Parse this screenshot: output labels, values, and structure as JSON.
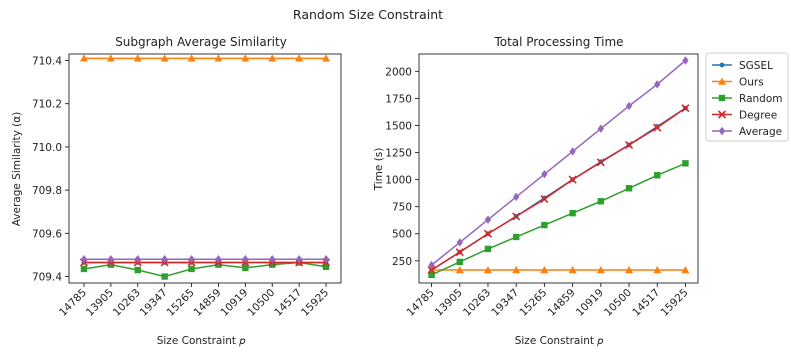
{
  "figure": {
    "suptitle": "Random Size Constraint"
  },
  "legend": {
    "entries": [
      {
        "name": "SGSEL",
        "color": "#1f77b4",
        "marker": "dot"
      },
      {
        "name": "Ours",
        "color": "#ff7f0e",
        "marker": "triangle"
      },
      {
        "name": "Random",
        "color": "#2ca02c",
        "marker": "square"
      },
      {
        "name": "Degree",
        "color": "#d62728",
        "marker": "x"
      },
      {
        "name": "Average",
        "color": "#9467bd",
        "marker": "diamond"
      }
    ],
    "placement": "right of second chart, top"
  },
  "chart_data": [
    {
      "type": "line",
      "title": "Subgraph Average Similarity",
      "xlabel": "Size Constraint 𝑝",
      "ylabel": "Average Similarity (α)",
      "categories": [
        "14785",
        "13905",
        "10263",
        "19347",
        "15265",
        "14859",
        "10919",
        "10500",
        "14517",
        "15925"
      ],
      "ylim": [
        709.37,
        710.43
      ],
      "yticks": [
        "709.4",
        "709.6",
        "709.8",
        "710.0",
        "710.2",
        "710.4"
      ],
      "ytick_values": [
        709.4,
        709.6,
        709.8,
        710.0,
        710.2,
        710.4
      ],
      "grid": false,
      "series": [
        {
          "name": "SGSEL",
          "color": "#1f77b4",
          "marker": "dot",
          "values": [
            709.465,
            709.465,
            709.465,
            709.465,
            709.465,
            709.465,
            709.465,
            709.465,
            709.465,
            709.465
          ]
        },
        {
          "name": "Ours",
          "color": "#ff7f0e",
          "marker": "triangle",
          "values": [
            710.41,
            710.41,
            710.41,
            710.41,
            710.41,
            710.41,
            710.41,
            710.41,
            710.41,
            710.41
          ]
        },
        {
          "name": "Random",
          "color": "#2ca02c",
          "marker": "square",
          "values": [
            709.435,
            709.455,
            709.43,
            709.4,
            709.435,
            709.455,
            709.44,
            709.455,
            709.465,
            709.445
          ]
        },
        {
          "name": "Degree",
          "color": "#d62728",
          "marker": "x",
          "values": [
            709.465,
            709.465,
            709.465,
            709.465,
            709.465,
            709.465,
            709.465,
            709.465,
            709.465,
            709.465
          ]
        },
        {
          "name": "Average",
          "color": "#9467bd",
          "marker": "diamond",
          "values": [
            709.48,
            709.48,
            709.48,
            709.48,
            709.48,
            709.48,
            709.48,
            709.48,
            709.48,
            709.48
          ]
        }
      ]
    },
    {
      "type": "line",
      "title": "Total Processing Time",
      "xlabel": "Size Constraint 𝑝",
      "ylabel": "Time (s)",
      "categories": [
        "14785",
        "13905",
        "10263",
        "19347",
        "15265",
        "14859",
        "10919",
        "10500",
        "14517",
        "15925"
      ],
      "ylim": [
        45,
        2160
      ],
      "yticks": [
        "250",
        "500",
        "750",
        "1000",
        "1250",
        "1500",
        "1750",
        "2000"
      ],
      "ytick_values": [
        250,
        500,
        750,
        1000,
        1250,
        1500,
        1750,
        2000
      ],
      "grid": false,
      "series": [
        {
          "name": "SGSEL",
          "color": "#1f77b4",
          "marker": "dot",
          "values": [
            165,
            330,
            500,
            660,
            830,
            1000,
            1165,
            1320,
            1490,
            1660
          ]
        },
        {
          "name": "Ours",
          "color": "#ff7f0e",
          "marker": "triangle",
          "values": [
            165,
            165,
            165,
            165,
            165,
            165,
            165,
            165,
            165,
            165
          ]
        },
        {
          "name": "Random",
          "color": "#2ca02c",
          "marker": "square",
          "values": [
            120,
            240,
            360,
            470,
            580,
            690,
            800,
            920,
            1040,
            1150
          ]
        },
        {
          "name": "Degree",
          "color": "#d62728",
          "marker": "x",
          "values": [
            165,
            330,
            500,
            660,
            820,
            1000,
            1160,
            1320,
            1480,
            1660
          ]
        },
        {
          "name": "Average",
          "color": "#9467bd",
          "marker": "diamond",
          "values": [
            210,
            420,
            630,
            840,
            1050,
            1260,
            1470,
            1680,
            1880,
            2100
          ]
        }
      ]
    }
  ]
}
